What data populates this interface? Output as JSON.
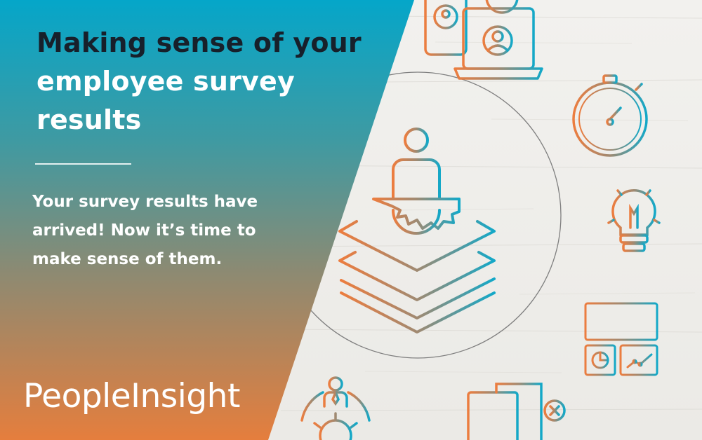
{
  "hero": {
    "title_line1": "Making sense of your",
    "title_line2": "employee survey",
    "title_line3": "results",
    "subtitle_line1": "Your survey results have",
    "subtitle_line2": "arrived! Now it’s time to",
    "subtitle_line3": "make sense of them."
  },
  "brand": {
    "name": "PeopleInsight"
  },
  "colors": {
    "teal": "#07a3c6",
    "orange": "#e37c3f",
    "title_dark": "#17202b",
    "white": "#ffffff"
  },
  "icons": [
    "person-on-layers-icon",
    "stopwatch-icon",
    "lightbulb-icon",
    "dashboard-icon",
    "devices-icon",
    "person-gear-icon",
    "document-checklist-icon"
  ]
}
